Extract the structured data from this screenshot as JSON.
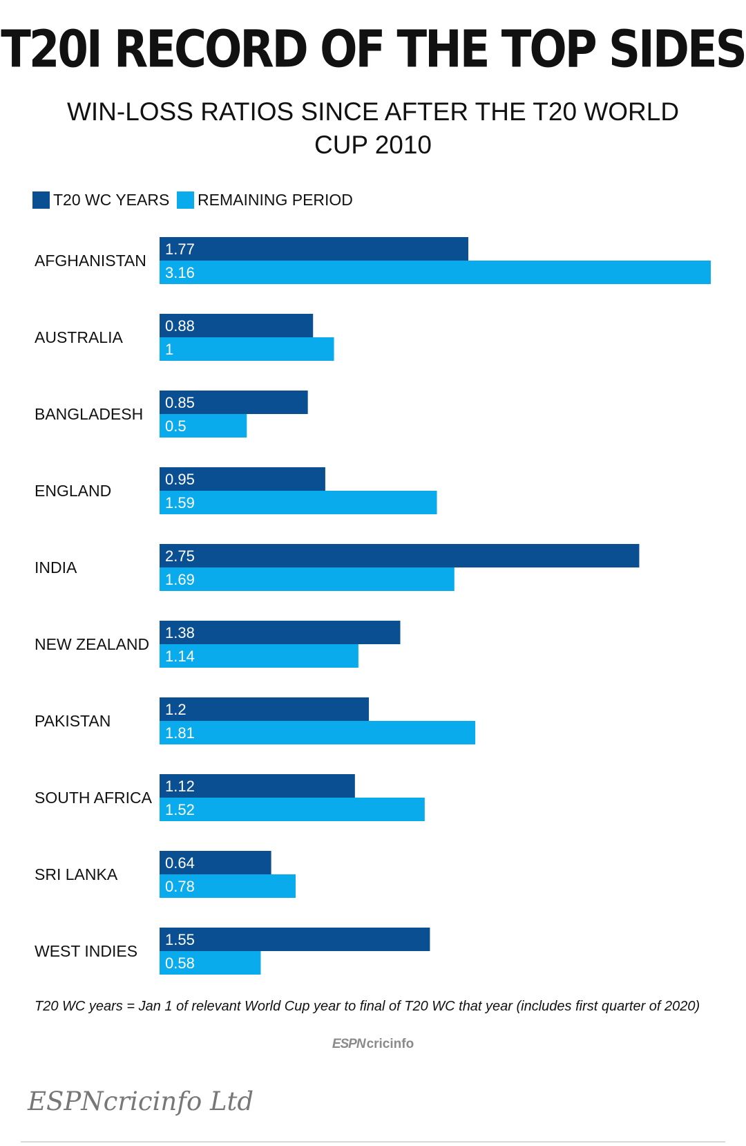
{
  "title": "T20I RECORD OF THE TOP SIDES",
  "subtitle": "WIN-LOSS RATIOS SINCE AFTER THE T20 WORLD CUP 2010",
  "footnote": "T20 WC years = Jan 1 of relevant World Cup year to final of T20 WC that year (includes first quarter of 2020)",
  "brand": {
    "espn": "ESPN",
    "name": "cricinfo"
  },
  "credit": "ESPNcricinfo Ltd",
  "colors": {
    "wc_years": "#0b4f93",
    "remaining": "#0aabec",
    "text": "#111111"
  },
  "chart_data": {
    "type": "bar",
    "orientation": "horizontal",
    "title": "T20I RECORD OF THE TOP SIDES",
    "subtitle": "WIN-LOSS RATIOS SINCE AFTER THE T20 WORLD CUP 2010",
    "categories": [
      "AFGHANISTAN",
      "AUSTRALIA",
      "BANGLADESH",
      "ENGLAND",
      "INDIA",
      "NEW ZEALAND",
      "PAKISTAN",
      "SOUTH AFRICA",
      "SRI LANKA",
      "WEST INDIES"
    ],
    "series": [
      {
        "name": "T20 WC YEARS",
        "values": [
          1.77,
          0.88,
          0.85,
          0.95,
          2.75,
          1.38,
          1.2,
          1.12,
          0.64,
          1.55
        ]
      },
      {
        "name": "REMAINING PERIOD",
        "values": [
          3.16,
          1,
          0.5,
          1.59,
          1.69,
          1.14,
          1.81,
          1.52,
          0.78,
          0.58
        ]
      }
    ],
    "value_labels": [
      [
        "1.77",
        "0.88",
        "0.85",
        "0.95",
        "2.75",
        "1.38",
        "1.2",
        "1.12",
        "0.64",
        "1.55"
      ],
      [
        "3.16",
        "1",
        "0.5",
        "1.59",
        "1.69",
        "1.14",
        "1.81",
        "1.52",
        "0.78",
        "0.58"
      ]
    ],
    "xlim": [
      0,
      3.16
    ],
    "grid": false,
    "legend": "top-left"
  }
}
